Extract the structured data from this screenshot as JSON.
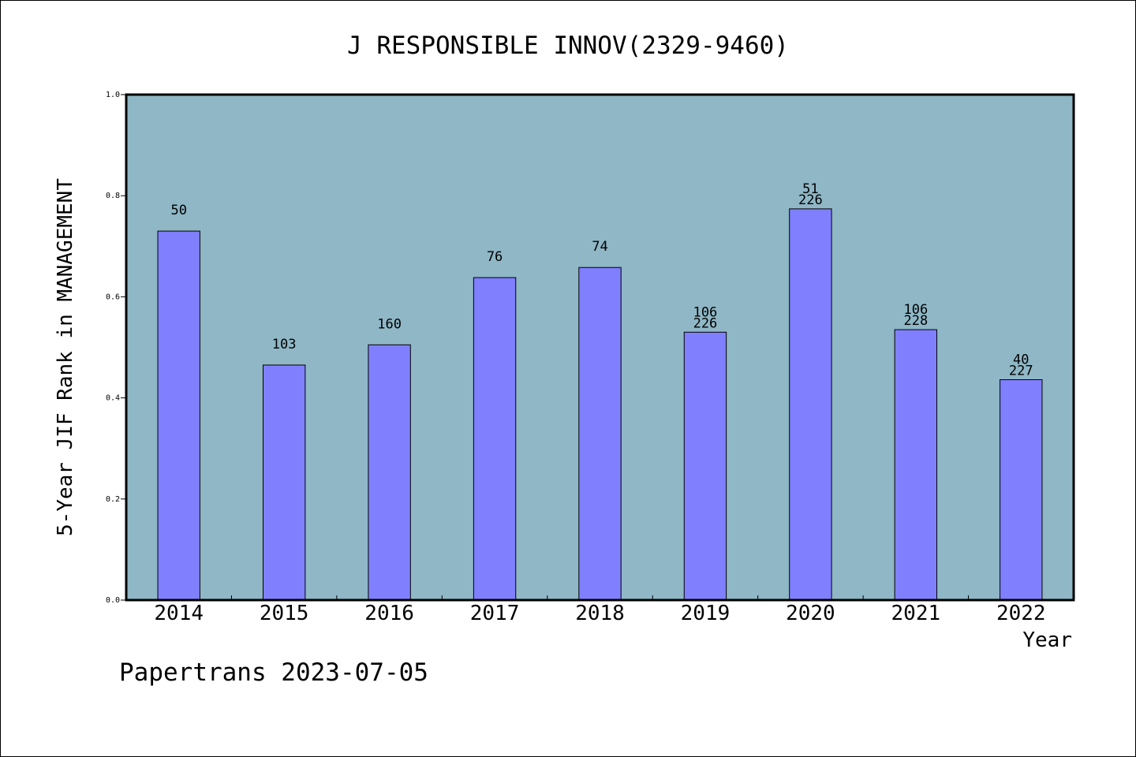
{
  "chart_data": {
    "type": "bar",
    "title": "J RESPONSIBLE INNOV(2329-9460)",
    "xlabel": "Year",
    "ylabel": "5-Year JIF Rank in MANAGEMENT",
    "ylim": [
      0.0,
      1.0
    ],
    "yticks": [
      "0.0",
      "0.2",
      "0.4",
      "0.6",
      "0.8",
      "1.0"
    ],
    "categories": [
      "2014",
      "2015",
      "2016",
      "2017",
      "2018",
      "2019",
      "2020",
      "2021",
      "2022"
    ],
    "values": [
      0.73,
      0.465,
      0.505,
      0.638,
      0.658,
      0.53,
      0.774,
      0.535,
      0.436
    ],
    "labels": [
      [
        "50"
      ],
      [
        "103"
      ],
      [
        "160"
      ],
      [
        "76"
      ],
      [
        "74"
      ],
      [
        "106",
        "226"
      ],
      [
        "51",
        "226"
      ],
      [
        "106",
        "228"
      ],
      [
        "40",
        "227"
      ]
    ],
    "colors": {
      "background": "#8fb7c6",
      "bar": "#8080ff",
      "axis": "#000000"
    },
    "grid": false
  },
  "footer": "Papertrans 2023-07-05"
}
